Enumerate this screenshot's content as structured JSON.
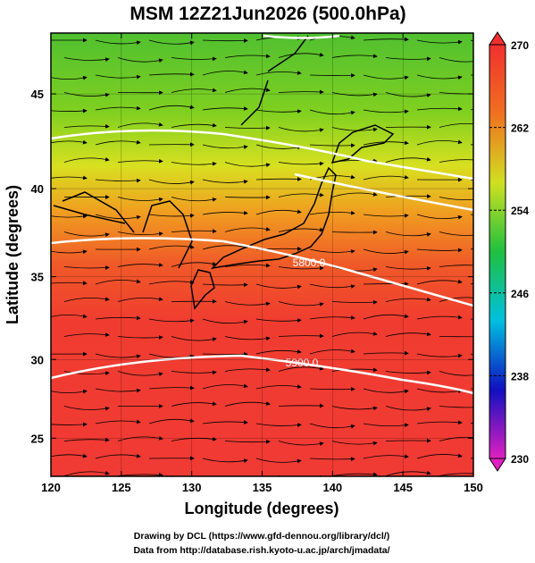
{
  "chart_data": {
    "type": "map",
    "title": "MSM 12Z21Jun2026 (500.0hPa)",
    "x_label": "Longitude (degrees)",
    "y_label": "Latitude  (degrees)",
    "xlim": [
      120,
      150
    ],
    "xticks": [
      120,
      125,
      130,
      135,
      140,
      145,
      150
    ],
    "ylim": [
      22.5,
      48
    ],
    "yticks": [
      25,
      30,
      35,
      40,
      45
    ],
    "projection": "mercator",
    "colorbar": {
      "lim": [
        230,
        270
      ],
      "ticks": [
        230,
        238,
        246,
        254,
        262,
        270
      ],
      "colors": [
        "#e020c0",
        "#1010c0",
        "#00c0e0",
        "#20c040",
        "#d0e020",
        "#f07020",
        "#f03030"
      ]
    },
    "contour_labels": [
      "5800.0",
      "5900.0"
    ],
    "credits": [
      "Drawing by DCL (https://www.gfd-dennou.org/library/dcl/)",
      "Data from http://database.rish.kyoto-u.ac.jp/arch/jmadata/"
    ]
  }
}
